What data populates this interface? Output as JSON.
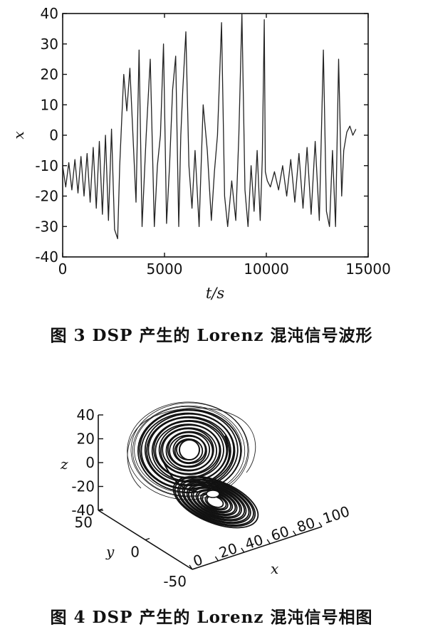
{
  "captions": {
    "fig3": "图 3   DSP 产生的 Lorenz 混沌信号波形",
    "fig4": "图 4  DSP 产生的 Lorenz 混沌信号相图"
  },
  "chart_data": [
    {
      "type": "line",
      "xlabel": "t/s",
      "ylabel": "x",
      "xlim": [
        0,
        15000
      ],
      "ylim": [
        -40,
        40
      ],
      "xticks": [
        "0",
        "5000",
        "10000",
        "15000"
      ],
      "yticks": [
        "40",
        "30",
        "20",
        "10",
        "0",
        "-10",
        "-20",
        "-30",
        "-40"
      ],
      "grid": false,
      "series": [
        {
          "x": [
            0,
            150,
            300,
            450,
            600,
            750,
            900,
            1050,
            1200,
            1350,
            1500,
            1650,
            1800,
            1950,
            2100,
            2250,
            2400,
            2550,
            2700,
            2800,
            2900,
            3000,
            3150,
            3300,
            3450,
            3600,
            3750,
            3900,
            4100,
            4300,
            4500,
            4650,
            4800,
            4950,
            5100,
            5250,
            5400,
            5550,
            5700,
            5800,
            5900,
            6050,
            6200,
            6350,
            6500,
            6700,
            6900,
            7100,
            7300,
            7450,
            7600,
            7800,
            7950,
            8100,
            8300,
            8500,
            8650,
            8800,
            8950,
            9100,
            9250,
            9400,
            9550,
            9700,
            9800,
            9900,
            9950,
            10050,
            10200,
            10400,
            10600,
            10800,
            11000,
            11200,
            11400,
            11600,
            11800,
            12000,
            12200,
            12400,
            12600,
            12800,
            12950,
            13100,
            13250,
            13400,
            13550,
            13700,
            13800,
            13950,
            14100,
            14250,
            14400
          ],
          "y": [
            -10,
            -17,
            -9,
            -18,
            -8,
            -19,
            -7,
            -20,
            -6,
            -22,
            -4,
            -24,
            -2,
            -26,
            0,
            -28,
            2,
            -31,
            -34,
            -10,
            5,
            20,
            8,
            22,
            0,
            -22,
            28,
            -30,
            0,
            25,
            -30,
            -10,
            0,
            30,
            -29,
            -10,
            15,
            26,
            -30,
            0,
            15,
            34,
            -10,
            -24,
            -5,
            -30,
            10,
            -5,
            -28,
            -12,
            0,
            37,
            -20,
            -30,
            -15,
            -28,
            0,
            40,
            -18,
            -30,
            -10,
            -25,
            -5,
            -28,
            -8,
            38,
            -12,
            -15,
            -17,
            -12,
            -18,
            -10,
            -20,
            -8,
            -22,
            -6,
            -24,
            -4,
            -26,
            -2,
            -28,
            28,
            -25,
            -30,
            -5,
            -30,
            25,
            -20,
            -5,
            1,
            3,
            0,
            2
          ]
        }
      ]
    },
    {
      "type": "scatter",
      "xlabel": "x",
      "ylabel": "y",
      "zlabel": "z",
      "xlim": [
        0,
        100
      ],
      "ylim": [
        -50,
        50
      ],
      "zlim": [
        -40,
        40
      ],
      "xticks": [
        "0",
        "20",
        "40",
        "60",
        "80",
        "100"
      ],
      "yticks": [
        "50",
        "0",
        "-50"
      ],
      "zticks": [
        "40",
        "20",
        "0",
        "-20",
        "-40"
      ]
    }
  ]
}
